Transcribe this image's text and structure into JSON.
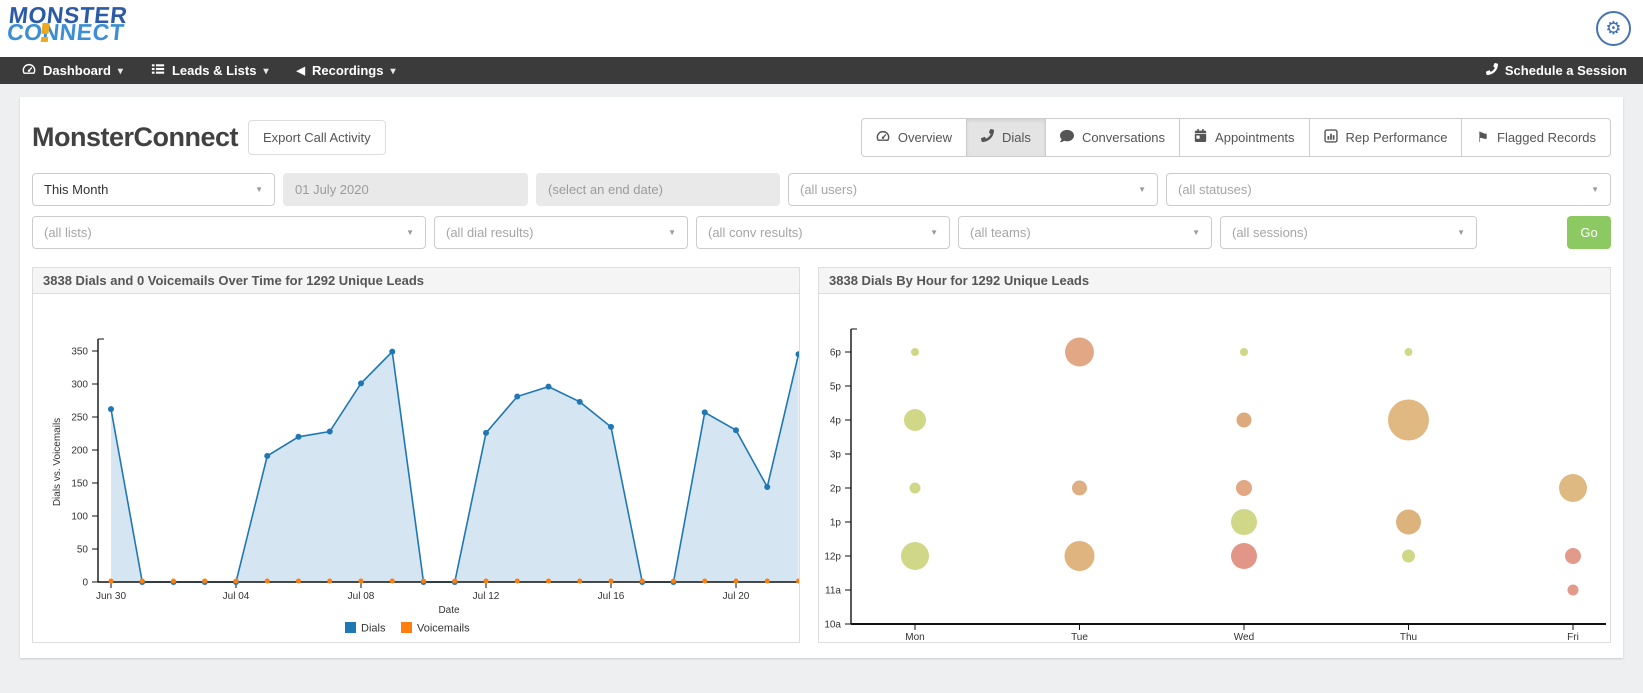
{
  "header": {
    "logo_line1": "MONSTER",
    "logo_line2": "CONNECT",
    "brand_colors": {
      "dark_blue": "#2b5aa7",
      "light_blue": "#3d8fd4",
      "orange": "#f0a81f"
    }
  },
  "icons": {
    "gear": "⚙",
    "caret_down": "▾",
    "select_caret": "▼",
    "recordings_triangle": "◀",
    "flag": "⚑"
  },
  "nav": {
    "items": [
      {
        "label": "Dashboard",
        "icon": "gauge-icon"
      },
      {
        "label": "Leads & Lists",
        "icon": "list-icon"
      },
      {
        "label": "Recordings",
        "icon": "triangle-left-icon"
      }
    ],
    "schedule_label": "Schedule a Session"
  },
  "toolbar": {
    "title": "MonsterConnect",
    "export_label": "Export Call Activity"
  },
  "tabs": [
    {
      "label": "Overview",
      "icon": "gauge-icon",
      "active": false
    },
    {
      "label": "Dials",
      "icon": "phone-icon",
      "active": true
    },
    {
      "label": "Conversations",
      "icon": "comments-icon",
      "active": false
    },
    {
      "label": "Appointments",
      "icon": "calendar-icon",
      "active": false
    },
    {
      "label": "Rep Performance",
      "icon": "bar-chart-icon",
      "active": false
    },
    {
      "label": "Flagged Records",
      "icon": "flag-icon",
      "active": false
    }
  ],
  "filters": {
    "row1": [
      {
        "text": "This Month",
        "type": "select"
      },
      {
        "text": "01 July 2020",
        "type": "date"
      },
      {
        "text": "(select an end date)",
        "type": "date"
      },
      {
        "text": "(all users)",
        "type": "select"
      },
      {
        "text": "(all statuses)",
        "type": "select"
      }
    ],
    "row2": [
      {
        "text": "(all lists)",
        "type": "select"
      },
      {
        "text": "(all dial results)",
        "type": "select"
      },
      {
        "text": "(all conv results)",
        "type": "select"
      },
      {
        "text": "(all teams)",
        "type": "select"
      },
      {
        "text": "(all sessions)",
        "type": "select"
      }
    ],
    "go_label": "Go"
  },
  "chart_data": [
    {
      "type": "area",
      "title": "3838 Dials and 0 Voicemails Over Time for 1292 Unique Leads",
      "xlabel": "Date",
      "ylabel": "Dials vs. Voicemails",
      "ylim": [
        0,
        380
      ],
      "yticks": [
        0,
        50,
        100,
        150,
        200,
        250,
        300,
        350
      ],
      "x": [
        "Jun 30",
        "Jul 01",
        "Jul 02",
        "Jul 03",
        "Jul 04",
        "Jul 05",
        "Jul 06",
        "Jul 07",
        "Jul 08",
        "Jul 09",
        "Jul 10",
        "Jul 11",
        "Jul 12",
        "Jul 13",
        "Jul 14",
        "Jul 15",
        "Jul 16",
        "Jul 17",
        "Jul 18",
        "Jul 19",
        "Jul 20",
        "Jul 21",
        "Jul 22"
      ],
      "xtick_indices": [
        0,
        4,
        8,
        12,
        16,
        20
      ],
      "legend_position": "bottom-center",
      "grid": false,
      "series": [
        {
          "name": "Dials",
          "color": "#1f77b4",
          "area_fill": "#cbdeef",
          "values": [
            262,
            0,
            0,
            0,
            0,
            191,
            220,
            228,
            301,
            349,
            0,
            0,
            226,
            281,
            296,
            273,
            235,
            0,
            0,
            257,
            230,
            144,
            345
          ]
        },
        {
          "name": "Voicemails",
          "color": "#ff7f0e",
          "area_fill": null,
          "values": [
            0,
            0,
            0,
            0,
            0,
            0,
            0,
            0,
            0,
            0,
            0,
            0,
            0,
            0,
            0,
            0,
            0,
            0,
            0,
            0,
            0,
            0,
            0
          ]
        }
      ]
    },
    {
      "type": "scatter",
      "subtype": "bubble",
      "title": "3838 Dials By Hour for 1292 Unique Leads",
      "xlabel": "",
      "ylabel": "",
      "days": [
        "Mon",
        "Tue",
        "Wed",
        "Thu",
        "Fri"
      ],
      "hours_bottom_to_top": [
        "10a",
        "11a",
        "12p",
        "1p",
        "2p",
        "3p",
        "4p",
        "5p",
        "6p"
      ],
      "grid": false,
      "points": [
        {
          "day": "Mon",
          "hour": "6p",
          "r": 4,
          "approx_dials": 25,
          "color": "#ccd47d"
        },
        {
          "day": "Mon",
          "hour": "4p",
          "r": 11,
          "approx_dials": 205,
          "color": "#ccd47d"
        },
        {
          "day": "Mon",
          "hour": "2p",
          "r": 5.5,
          "approx_dials": 50,
          "color": "#ccd47d"
        },
        {
          "day": "Mon",
          "hour": "12p",
          "r": 14,
          "approx_dials": 330,
          "color": "#ccd47d"
        },
        {
          "day": "Tue",
          "hour": "6p",
          "r": 14.5,
          "approx_dials": 355,
          "color": "#e0a17b"
        },
        {
          "day": "Tue",
          "hour": "2p",
          "r": 7.5,
          "approx_dials": 95,
          "color": "#daa878"
        },
        {
          "day": "Tue",
          "hour": "12p",
          "r": 15,
          "approx_dials": 380,
          "color": "#dcae74"
        },
        {
          "day": "Wed",
          "hour": "6p",
          "r": 4,
          "approx_dials": 25,
          "color": "#ccd47d"
        },
        {
          "day": "Wed",
          "hour": "4p",
          "r": 7.5,
          "approx_dials": 95,
          "color": "#daa373"
        },
        {
          "day": "Wed",
          "hour": "2p",
          "r": 8,
          "approx_dials": 110,
          "color": "#df9f78"
        },
        {
          "day": "Wed",
          "hour": "1p",
          "r": 13,
          "approx_dials": 285,
          "color": "#ccd47d"
        },
        {
          "day": "Wed",
          "hour": "12p",
          "r": 13,
          "approx_dials": 285,
          "color": "#e08d7e"
        },
        {
          "day": "Thu",
          "hour": "6p",
          "r": 4,
          "approx_dials": 25,
          "color": "#ccd47d"
        },
        {
          "day": "Thu",
          "hour": "4p",
          "r": 20.5,
          "approx_dials": 715,
          "color": "#ddb377"
        },
        {
          "day": "Thu",
          "hour": "1p",
          "r": 12.5,
          "approx_dials": 265,
          "color": "#d9ab72"
        },
        {
          "day": "Thu",
          "hour": "12p",
          "r": 6.5,
          "approx_dials": 70,
          "color": "#ccd47d"
        },
        {
          "day": "Fri",
          "hour": "2p",
          "r": 14,
          "approx_dials": 330,
          "color": "#dbb377"
        },
        {
          "day": "Fri",
          "hour": "12p",
          "r": 8,
          "approx_dials": 110,
          "color": "#e09180"
        },
        {
          "day": "Fri",
          "hour": "11a",
          "r": 5.5,
          "approx_dials": 50,
          "color": "#e09180"
        }
      ]
    }
  ]
}
